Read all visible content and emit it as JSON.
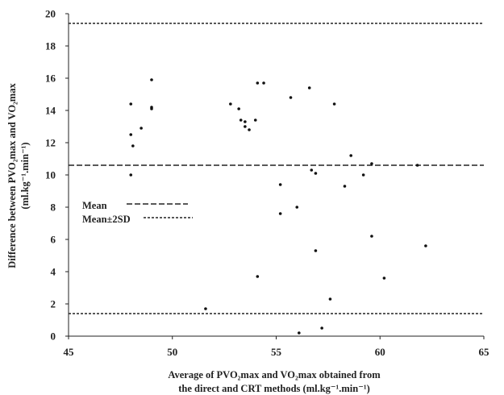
{
  "chart_data": {
    "type": "scatter",
    "xlim": [
      45,
      65
    ],
    "ylim": [
      0,
      20
    ],
    "x_ticks": [
      "45",
      "50",
      "55",
      "60",
      "65"
    ],
    "y_ticks": [
      "0",
      "2",
      "4",
      "6",
      "8",
      "10",
      "12",
      "14",
      "16",
      "18",
      "20"
    ],
    "xlabel_line1": "Average of PVO₂max and VO₂max obtained from",
    "xlabel_line2": "the direct and CRT methods (ml.kg⁻¹.min⁻¹)",
    "ylabel_line1": "Difference between PVO₂max and VO₂max",
    "ylabel_line2": "(ml.kg⁻¹.min⁻¹)",
    "grid": false,
    "legend_position": "left",
    "legend": [
      {
        "label": "Mean",
        "dash": "long"
      },
      {
        "label": "Mean±2SD",
        "dash": "short"
      }
    ],
    "reference_lines": [
      {
        "name": "Mean+2SD",
        "y": 19.4,
        "dash": "short"
      },
      {
        "name": "Mean",
        "y": 10.6,
        "dash": "long"
      },
      {
        "name": "Mean-2SD",
        "y": 1.4,
        "dash": "short"
      }
    ],
    "points": [
      {
        "x": 48.0,
        "y": 14.4
      },
      {
        "x": 48.0,
        "y": 12.5
      },
      {
        "x": 48.1,
        "y": 11.8
      },
      {
        "x": 48.0,
        "y": 10.0
      },
      {
        "x": 48.5,
        "y": 12.9
      },
      {
        "x": 49.0,
        "y": 15.9
      },
      {
        "x": 49.0,
        "y": 14.2
      },
      {
        "x": 49.0,
        "y": 14.1
      },
      {
        "x": 51.6,
        "y": 1.7
      },
      {
        "x": 52.8,
        "y": 14.4
      },
      {
        "x": 53.2,
        "y": 14.1
      },
      {
        "x": 53.3,
        "y": 13.4
      },
      {
        "x": 53.5,
        "y": 13.3
      },
      {
        "x": 53.5,
        "y": 13.0
      },
      {
        "x": 53.7,
        "y": 12.8
      },
      {
        "x": 54.0,
        "y": 13.4
      },
      {
        "x": 54.1,
        "y": 15.7
      },
      {
        "x": 54.4,
        "y": 15.7
      },
      {
        "x": 54.1,
        "y": 3.7
      },
      {
        "x": 55.2,
        "y": 9.4
      },
      {
        "x": 55.2,
        "y": 7.6
      },
      {
        "x": 55.7,
        "y": 14.8
      },
      {
        "x": 56.0,
        "y": 8.0
      },
      {
        "x": 56.1,
        "y": 0.2
      },
      {
        "x": 56.6,
        "y": 15.4
      },
      {
        "x": 56.7,
        "y": 10.3
      },
      {
        "x": 56.9,
        "y": 10.1
      },
      {
        "x": 56.9,
        "y": 5.3
      },
      {
        "x": 57.2,
        "y": 0.5
      },
      {
        "x": 57.6,
        "y": 2.3
      },
      {
        "x": 57.8,
        "y": 14.4
      },
      {
        "x": 58.3,
        "y": 9.3
      },
      {
        "x": 58.6,
        "y": 11.2
      },
      {
        "x": 59.2,
        "y": 10.0
      },
      {
        "x": 59.6,
        "y": 10.7
      },
      {
        "x": 59.6,
        "y": 6.2
      },
      {
        "x": 60.2,
        "y": 3.6
      },
      {
        "x": 61.8,
        "y": 10.6
      },
      {
        "x": 62.2,
        "y": 5.6
      }
    ]
  }
}
